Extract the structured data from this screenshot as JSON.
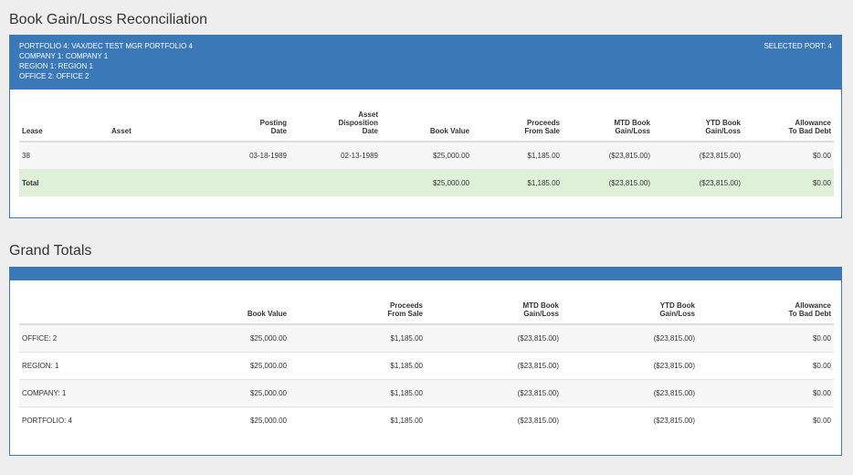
{
  "recon": {
    "title": "Book Gain/Loss Reconciliation",
    "header": {
      "portfolio": "PORTFOLIO  4:  VAX/DEC TEST MGR PORTFOLIO 4",
      "company": "COMPANY  1:  COMPANY 1",
      "region": "REGION  1:  REGION 1",
      "office": "OFFICE  2:  OFFICE 2",
      "selected_port": "SELECTED PORT: 4"
    },
    "columns": {
      "lease": "Lease",
      "asset": "Asset",
      "posting_1": "Posting",
      "posting_2": "Date",
      "disp_1": "Asset",
      "disp_2": "Disposition",
      "disp_3": "Date",
      "book_value": "Book Value",
      "proceeds_1": "Proceeds",
      "proceeds_2": "From Sale",
      "mtd_1": "MTD Book",
      "mtd_2": "Gain/Loss",
      "ytd_1": "YTD Book",
      "ytd_2": "Gain/Loss",
      "allow_1": "Allowance",
      "allow_2": "To Bad Debt"
    },
    "rows": [
      {
        "lease": "38",
        "asset": "",
        "posting_date": "03-18-1989",
        "disposition_date": "02-13-1989",
        "book_value": "$25,000.00",
        "proceeds": "$1,185.00",
        "mtd": "($23,815.00)",
        "ytd": "($23,815.00)",
        "allowance": "$0.00"
      }
    ],
    "total": {
      "label": "Total",
      "book_value": "$25,000.00",
      "proceeds": "$1,185.00",
      "mtd": "($23,815.00)",
      "ytd": "($23,815.00)",
      "allowance": "$0.00"
    }
  },
  "grand": {
    "title": "Grand Totals",
    "columns": {
      "book_value": "Book Value",
      "proceeds_1": "Proceeds",
      "proceeds_2": "From Sale",
      "mtd_1": "MTD Book",
      "mtd_2": "Gain/Loss",
      "ytd_1": "YTD Book",
      "ytd_2": "Gain/Loss",
      "allow_1": "Allowance",
      "allow_2": "To Bad Debt"
    },
    "rows": [
      {
        "label": "OFFICE: 2",
        "book_value": "$25,000.00",
        "proceeds": "$1,185.00",
        "mtd": "($23,815.00)",
        "ytd": "($23,815.00)",
        "allowance": "$0.00"
      },
      {
        "label": "REGION: 1",
        "book_value": "$25,000.00",
        "proceeds": "$1,185.00",
        "mtd": "($23,815.00)",
        "ytd": "($23,815.00)",
        "allowance": "$0.00"
      },
      {
        "label": "COMPANY: 1",
        "book_value": "$25,000.00",
        "proceeds": "$1,185.00",
        "mtd": "($23,815.00)",
        "ytd": "($23,815.00)",
        "allowance": "$0.00"
      },
      {
        "label": "PORTFOLIO: 4",
        "book_value": "$25,000.00",
        "proceeds": "$1,185.00",
        "mtd": "($23,815.00)",
        "ytd": "($23,815.00)",
        "allowance": "$0.00"
      }
    ]
  },
  "colors": {
    "header_blue": "#3a78b8",
    "total_row_green": "#dff0d8",
    "page_background": "#eeeeee"
  }
}
